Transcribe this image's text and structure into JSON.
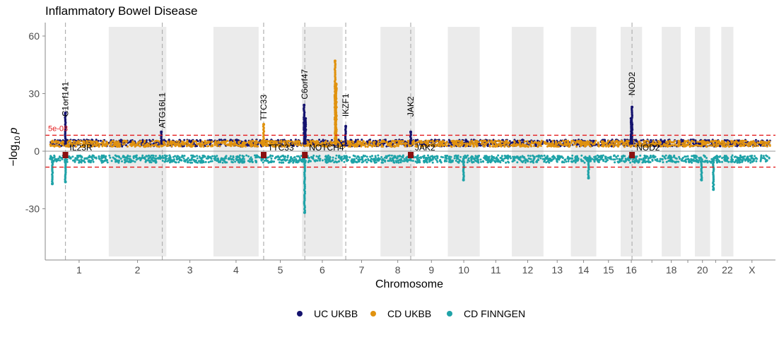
{
  "chart_data": {
    "type": "scatter",
    "subtype": "miami-manhattan",
    "title": "Inflammatory Bowel Disease",
    "xlabel": "Chromosome",
    "ylabel_prefix": "−log",
    "ylabel_sub": "10",
    "ylabel_var": "p",
    "ylim": [
      -55,
      67
    ],
    "yticks": [
      -30,
      0,
      30,
      60
    ],
    "grid": false,
    "threshold": {
      "label": "5e-08",
      "value": 8.3,
      "color": "#e41a1c"
    },
    "chromosomes": [
      {
        "label": "1",
        "start": 0,
        "end": 249
      },
      {
        "label": "2",
        "start": 249,
        "end": 491
      },
      {
        "label": "3",
        "start": 491,
        "end": 689
      },
      {
        "label": "4",
        "start": 689,
        "end": 879
      },
      {
        "label": "5",
        "start": 879,
        "end": 1061
      },
      {
        "label": "6",
        "start": 1061,
        "end": 1232
      },
      {
        "label": "7",
        "start": 1232,
        "end": 1391
      },
      {
        "label": "8",
        "start": 1391,
        "end": 1536
      },
      {
        "label": "9",
        "start": 1536,
        "end": 1674
      },
      {
        "label": "10",
        "start": 1674,
        "end": 1808
      },
      {
        "label": "11",
        "start": 1808,
        "end": 1943
      },
      {
        "label": "12",
        "start": 1943,
        "end": 2076
      },
      {
        "label": "13",
        "start": 2076,
        "end": 2191
      },
      {
        "label": "14",
        "start": 2191,
        "end": 2298
      },
      {
        "label": "15",
        "start": 2298,
        "end": 2400
      },
      {
        "label": "16",
        "start": 2400,
        "end": 2490
      },
      {
        "label": "",
        "start": 2490,
        "end": 2573
      },
      {
        "label": "18",
        "start": 2573,
        "end": 2653
      },
      {
        "label": "",
        "start": 2653,
        "end": 2712
      },
      {
        "label": "20",
        "start": 2712,
        "end": 2776
      },
      {
        "label": "",
        "start": 2776,
        "end": 2823
      },
      {
        "label": "22",
        "start": 2823,
        "end": 2874
      },
      {
        "label": "X",
        "start": 2874,
        "end": 3030
      }
    ],
    "series": [
      {
        "name": "UC UKBB",
        "color": "#14126e",
        "direction": "up"
      },
      {
        "name": "CD UKBB",
        "color": "#e0920f",
        "direction": "up"
      },
      {
        "name": "CD FINNGEN",
        "color": "#1fa3a8",
        "direction": "down"
      }
    ],
    "upper_peaks": [
      {
        "series": "UC UKBB",
        "pos": 67,
        "y": 20
      },
      {
        "series": "UC UKBB",
        "pos": 470,
        "y": 10
      },
      {
        "series": "CD UKBB",
        "pos": 900,
        "y": 14
      },
      {
        "series": "UC UKBB",
        "pos": 1070,
        "y": 24
      },
      {
        "series": "UC UKBB",
        "pos": 1076,
        "y": 17
      },
      {
        "series": "CD UKBB",
        "pos": 1200,
        "y": 47
      },
      {
        "series": "CD UKBB",
        "pos": 1205,
        "y": 35
      },
      {
        "series": "UC UKBB",
        "pos": 1245,
        "y": 13
      },
      {
        "series": "UC UKBB",
        "pos": 1518,
        "y": 10
      },
      {
        "series": "UC UKBB",
        "pos": 2448,
        "y": 23
      },
      {
        "series": "UC UKBB",
        "pos": 2444,
        "y": 17
      }
    ],
    "lower_peaks": [
      {
        "series": "CD FINNGEN",
        "pos": 67,
        "y": -16
      },
      {
        "series": "CD FINNGEN",
        "pos": 12,
        "y": -17
      },
      {
        "series": "CD FINNGEN",
        "pos": 1072,
        "y": -32
      },
      {
        "series": "CD FINNGEN",
        "pos": 1740,
        "y": -15
      },
      {
        "series": "CD FINNGEN",
        "pos": 2740,
        "y": -15
      },
      {
        "series": "CD FINNGEN",
        "pos": 2790,
        "y": -20
      },
      {
        "series": "CD FINNGEN",
        "pos": 2265,
        "y": -14
      }
    ],
    "upper_genes": [
      {
        "label": "C1orf141",
        "pos": 67,
        "y_label": 18
      },
      {
        "label": "ATG16L1",
        "pos": 474,
        "y_label": 12
      },
      {
        "label": "TTC33",
        "pos": 900,
        "y_label": 16
      },
      {
        "label": "C6orf47",
        "pos": 1073,
        "y_label": 27
      },
      {
        "label": "IKZF1",
        "pos": 1245,
        "y_label": 18
      },
      {
        "label": "JAK2",
        "pos": 1518,
        "y_label": 18
      },
      {
        "label": "NOD2",
        "pos": 2448,
        "y_label": 29
      }
    ],
    "lower_genes": [
      {
        "label": "IL23R",
        "pos": 67
      },
      {
        "label": "TTC33",
        "pos": 900
      },
      {
        "label": "NOTCH4",
        "pos": 1073
      },
      {
        "label": "JAK2",
        "pos": 1518
      },
      {
        "label": "NOD2",
        "pos": 2448
      }
    ],
    "legend_position": "bottom"
  }
}
